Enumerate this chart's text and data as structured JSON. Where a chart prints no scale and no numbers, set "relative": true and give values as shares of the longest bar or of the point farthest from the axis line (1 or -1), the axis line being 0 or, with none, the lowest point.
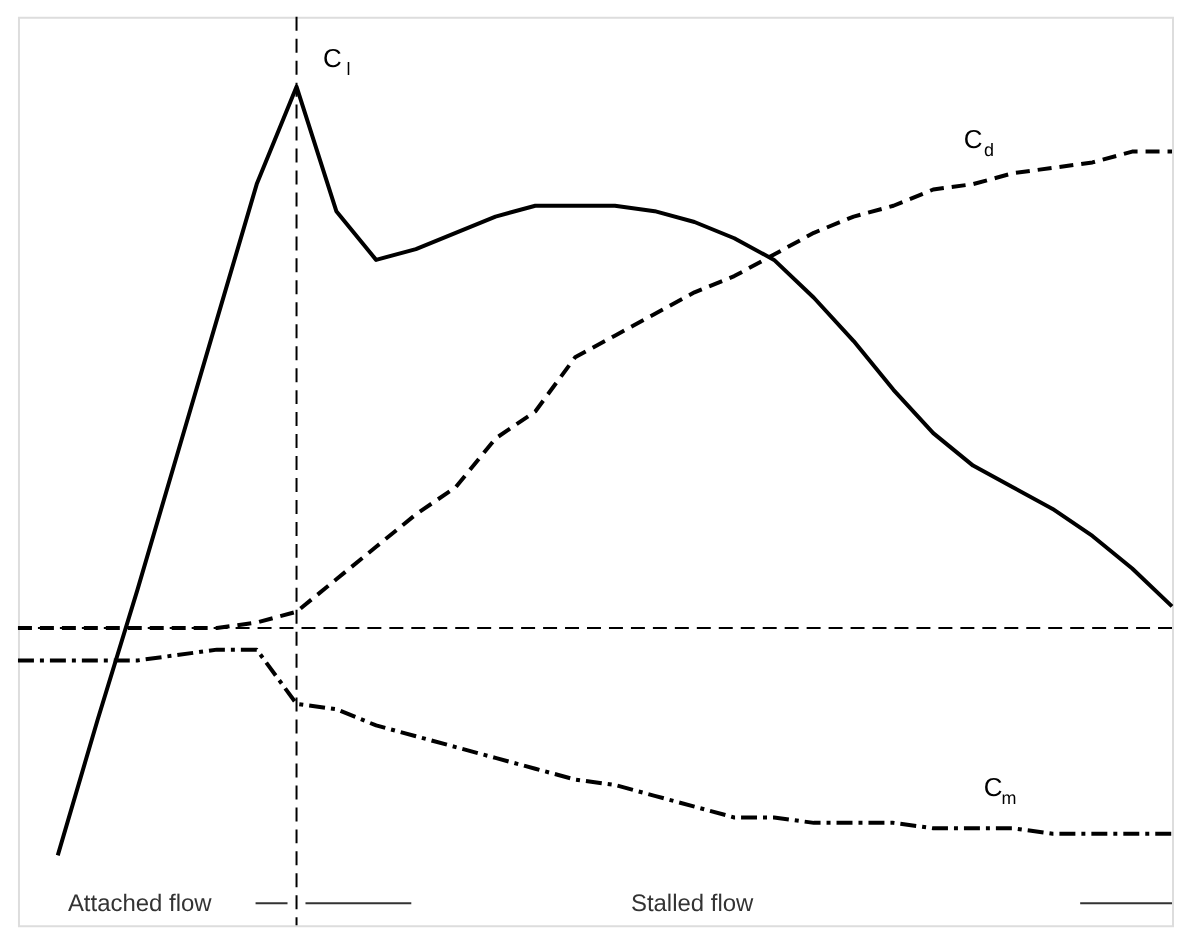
{
  "chart_data": {
    "type": "line",
    "relative": true,
    "categories": [
      null,
      null,
      null,
      null,
      null,
      null,
      null,
      null,
      null,
      null,
      null,
      null,
      null,
      null,
      null,
      null,
      null,
      null,
      null,
      null,
      null,
      null,
      null,
      null,
      null,
      null,
      null,
      null,
      null,
      null
    ],
    "series": [
      {
        "name": "C$_{l}$",
        "color": "#000000",
        "line_style": "solid",
        "values": [
          null,
          -0.42,
          -0.17,
          0.07,
          0.32,
          0.57,
          0.82,
          1.0,
          0.77,
          0.68,
          0.7,
          0.73,
          0.76,
          0.78,
          0.78,
          0.78,
          0.77,
          0.75,
          0.72,
          0.68,
          0.61,
          0.53,
          0.44,
          0.36,
          0.3,
          0.26,
          0.22,
          0.17,
          0.11,
          0.04
        ]
      },
      {
        "name": "C$_{d}$",
        "color": "#000000",
        "line_style": "dashed",
        "values": [
          0.0,
          0.0,
          0.0,
          0.0,
          0.0,
          0.0,
          0.01,
          0.03,
          0.09,
          0.15,
          0.21,
          0.26,
          0.35,
          0.4,
          0.5,
          0.54,
          0.58,
          0.62,
          0.65,
          0.69,
          0.73,
          0.76,
          0.78,
          0.81,
          0.82,
          0.84,
          0.85,
          0.86,
          0.88,
          0.88
        ]
      },
      {
        "name": "C$_{m}$",
        "color": "#000000",
        "line_style": "dashdot",
        "values": [
          -0.06,
          -0.06,
          -0.06,
          -0.06,
          -0.05,
          -0.04,
          -0.04,
          -0.14,
          -0.15,
          -0.18,
          -0.2,
          -0.22,
          -0.24,
          -0.26,
          -0.28,
          -0.29,
          -0.31,
          -0.33,
          -0.35,
          -0.35,
          -0.36,
          -0.36,
          -0.36,
          -0.37,
          -0.37,
          -0.37,
          -0.38,
          -0.38,
          -0.38,
          -0.38
        ]
      }
    ],
    "ref_lines": [
      {
        "axis": "y",
        "value": 0,
        "line_style": "dashed",
        "color": "#000000"
      }
    ],
    "annotations": [
      "Attached flow",
      "Stalled flow"
    ],
    "grid": false,
    "legend": false,
    "marker": "none",
    "tick_labels": false
  }
}
